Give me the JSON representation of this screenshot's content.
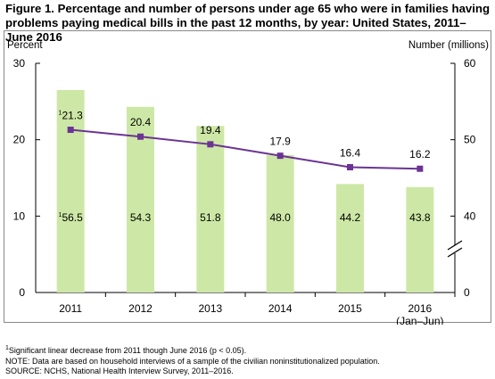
{
  "title": "Figure 1. Percentage and number of persons under age 65 who were in families having problems paying medical bills in the past 12 months, by year: United States, 2011–June 2016",
  "chart_data": {
    "type": "bar",
    "categories": [
      "2011",
      "2012",
      "2013",
      "2014",
      "2015",
      "2016"
    ],
    "category_sublabels": [
      "",
      "",
      "",
      "",
      "",
      "(Jan–Jun)"
    ],
    "percent_values": [
      21.3,
      20.4,
      19.4,
      17.9,
      16.4,
      16.2
    ],
    "percent_labels": [
      "21.3",
      "20.4",
      "19.4",
      "17.9",
      "16.4",
      "16.2"
    ],
    "number_values": [
      56.5,
      54.3,
      51.8,
      48.0,
      44.2,
      43.8
    ],
    "number_labels": [
      "56.5",
      "54.3",
      "51.8",
      "48.0",
      "44.2",
      "43.8"
    ],
    "footnote_marks": [
      "1",
      "",
      "",
      "",
      "",
      ""
    ],
    "left_axis": {
      "label": "Percent",
      "ticks": [
        "0",
        "10",
        "20",
        "30"
      ],
      "range": [
        0,
        30
      ]
    },
    "right_axis": {
      "label": "Number (millions)",
      "ticks": [
        "0",
        "40",
        "50",
        "60"
      ],
      "range": [
        30,
        60
      ],
      "broken": true
    },
    "bar_color": "#cde8a6",
    "line_color": "#6b3494",
    "grid": false
  },
  "notes": {
    "footnote_mark": "1",
    "footnote": "Significant linear decrease from 2011 though June 2016 (p < 0.05).",
    "note": "NOTE: Data are based on household interviews of a sample of the civilian noninstitutionalized population.",
    "source": "SOURCE: NCHS, National Health Interview Survey, 2011–2016."
  }
}
